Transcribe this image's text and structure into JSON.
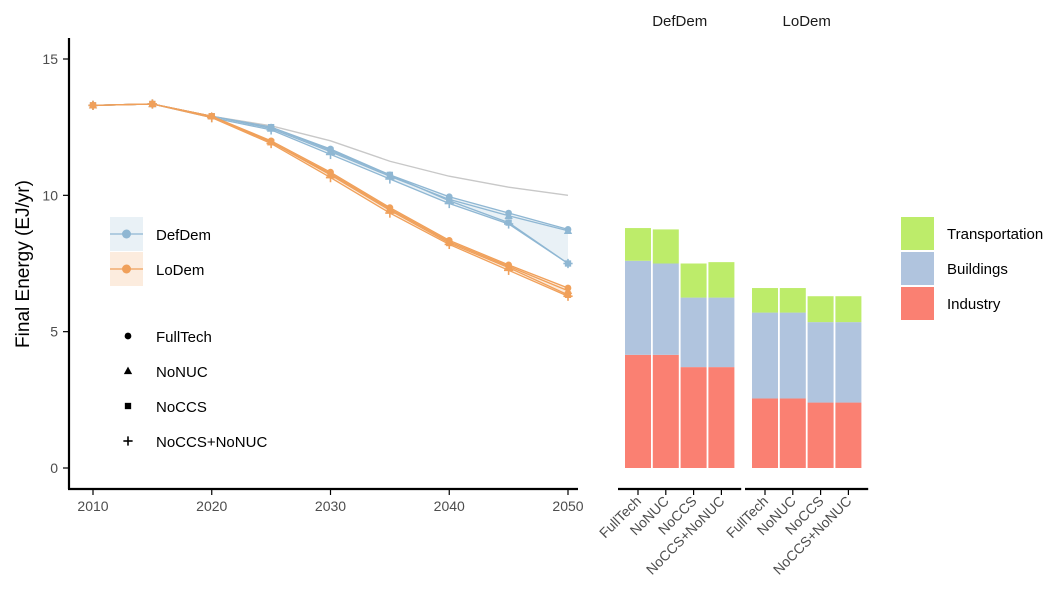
{
  "chart_data": [
    {
      "type": "line",
      "ylabel": "Final Energy (EJ/yr)",
      "xlim": [
        2010,
        2050
      ],
      "ylim": [
        0,
        15
      ],
      "x_ticks": [
        2010,
        2020,
        2030,
        2040,
        2050
      ],
      "y_ticks": [
        0,
        5,
        10,
        15
      ],
      "x": [
        2010,
        2015,
        2020,
        2025,
        2030,
        2035,
        2040,
        2045,
        2050
      ],
      "reference_line": [
        13.3,
        13.35,
        12.9,
        12.55,
        12.0,
        11.25,
        10.7,
        10.3,
        10.0
      ],
      "series": [
        {
          "name": "DefDem",
          "tech": "FullTech",
          "values": [
            13.3,
            13.35,
            12.9,
            12.5,
            11.7,
            10.75,
            9.95,
            9.35,
            8.75
          ]
        },
        {
          "name": "DefDem",
          "tech": "NoNUC",
          "values": [
            13.3,
            13.35,
            12.9,
            12.45,
            11.6,
            10.7,
            9.85,
            9.25,
            8.7
          ]
        },
        {
          "name": "DefDem",
          "tech": "NoCCS",
          "values": [
            13.3,
            13.35,
            12.9,
            12.5,
            11.65,
            10.75,
            9.8,
            9.0,
            7.5
          ]
        },
        {
          "name": "DefDem",
          "tech": "NoCCS+NoNUC",
          "values": [
            13.3,
            13.35,
            12.85,
            12.4,
            11.5,
            10.6,
            9.7,
            8.95,
            7.5
          ]
        },
        {
          "name": "LoDem",
          "tech": "FullTech",
          "values": [
            13.3,
            13.35,
            12.9,
            12.0,
            10.85,
            9.55,
            8.35,
            7.45,
            6.6
          ]
        },
        {
          "name": "LoDem",
          "tech": "NoNUC",
          "values": [
            13.3,
            13.35,
            12.9,
            11.95,
            10.8,
            9.5,
            8.3,
            7.4,
            6.5
          ]
        },
        {
          "name": "LoDem",
          "tech": "NoCCS",
          "values": [
            13.3,
            13.35,
            12.9,
            11.95,
            10.75,
            9.45,
            8.25,
            7.35,
            6.35
          ]
        },
        {
          "name": "LoDem",
          "tech": "NoCCS+NoNUC",
          "values": [
            13.3,
            13.35,
            12.85,
            11.9,
            10.65,
            9.35,
            8.2,
            7.25,
            6.3
          ]
        }
      ],
      "legend_scenario": [
        "DefDem",
        "LoDem"
      ],
      "legend_tech": [
        "FullTech",
        "NoNUC",
        "NoCCS",
        "NoCCS+NoNUC"
      ],
      "legend_placement": "inside-left",
      "grid": false
    },
    {
      "type": "bar",
      "stacked": true,
      "facets": [
        "DefDem",
        "LoDem"
      ],
      "categories": [
        "FullTech",
        "NoNUC",
        "NoCCS",
        "NoCCS+NoNUC"
      ],
      "ylim": [
        0,
        15
      ],
      "series": [
        {
          "name": "Industry",
          "values": {
            "DefDem": [
              4.15,
              4.15,
              3.7,
              3.7
            ],
            "LoDem": [
              2.55,
              2.55,
              2.4,
              2.4
            ]
          }
        },
        {
          "name": "Buildings",
          "values": {
            "DefDem": [
              3.45,
              3.35,
              2.55,
              2.55
            ],
            "LoDem": [
              3.15,
              3.15,
              2.95,
              2.95
            ]
          }
        },
        {
          "name": "Transportation",
          "values": {
            "DefDem": [
              1.2,
              1.25,
              1.25,
              1.3
            ],
            "LoDem": [
              0.9,
              0.9,
              0.95,
              0.95
            ]
          }
        }
      ],
      "legend": [
        "Transportation",
        "Buildings",
        "Industry"
      ],
      "legend_placement": "right"
    }
  ],
  "colors": {
    "DefDem": "#8fb7d3",
    "LoDem": "#f0a05a",
    "reference": "#c8c8c8",
    "Industry": "#fa8072",
    "Buildings": "#b0c4de",
    "Transportation": "#bdec6a",
    "axis": "#000000",
    "tick_label": "#4d4d4d"
  }
}
